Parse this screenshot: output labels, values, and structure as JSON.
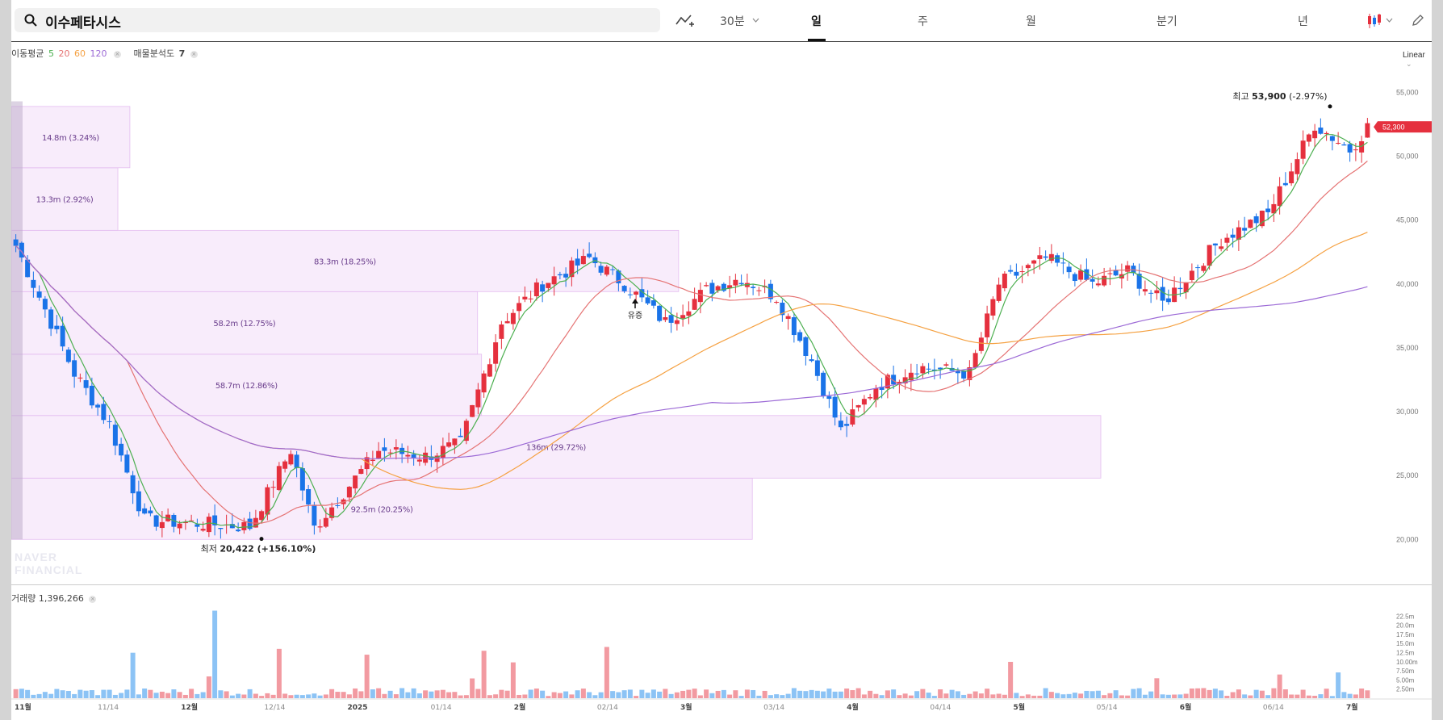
{
  "header": {
    "stock_name": "이수페타시스",
    "intervals": [
      {
        "label": "30분",
        "active": false
      },
      {
        "label": "일",
        "active": true
      },
      {
        "label": "주",
        "active": false
      },
      {
        "label": "월",
        "active": false
      },
      {
        "label": "분기",
        "active": false
      },
      {
        "label": "년",
        "active": false
      }
    ]
  },
  "legend": {
    "ma_label": "이동평균",
    "ma_periods": [
      "5",
      "20",
      "60",
      "120"
    ],
    "ma_colors": [
      "#4caf50",
      "#e57373",
      "#f5a142",
      "#9c6ad6"
    ],
    "volume_profile_label": "매물분석도",
    "volume_profile_value": "7"
  },
  "scale_mode": "Linear",
  "current_price": "52,300",
  "high_label": "최고",
  "high_value": "53,900",
  "high_change": "(-2.97%)",
  "low_label": "최저",
  "low_value": "20,422",
  "low_change": "(+156.10%)",
  "event_label": "유증",
  "volume": {
    "label": "거래량",
    "value": "1,396,266",
    "ticks": [
      "22.5m",
      "20.0m",
      "17.5m",
      "15.0m",
      "12.5m",
      "10.00m",
      "7.50m",
      "5.00m",
      "2.50m"
    ]
  },
  "watermark": [
    "NAVER",
    "FINANCIAL"
  ],
  "colors": {
    "up": "#e5303e",
    "down": "#1a73e8",
    "profile": "#f3dcf8"
  },
  "chart_data": {
    "type": "candlestick",
    "y_ticks": [
      "55,000",
      "50,000",
      "45,000",
      "40,000",
      "35,000",
      "30,000",
      "25,000",
      "20,000"
    ],
    "ylim": [
      18500,
      56800
    ],
    "x_labels": [
      "11월",
      "11/14",
      "12월",
      "12/14",
      "2025",
      "01/14",
      "2월",
      "02/14",
      "3월",
      "03/14",
      "4월",
      "04/14",
      "5월",
      "05/14",
      "6월",
      "06/14",
      "7월"
    ],
    "volume_profile": [
      {
        "label": "92.5m (20.25%)",
        "low": 20000,
        "high": 24800,
        "value": 92.5
      },
      {
        "label": "136m (29.72%)",
        "low": 24800,
        "high": 29700,
        "value": 136
      },
      {
        "label": "58.7m (12.86%)",
        "low": 29700,
        "high": 34500,
        "value": 58.7
      },
      {
        "label": "58.2m (12.75%)",
        "low": 34500,
        "high": 39400,
        "value": 58.2
      },
      {
        "label": "83.3m (18.25%)",
        "low": 39400,
        "high": 44200,
        "value": 83.3
      },
      {
        "label": "13.3m (2.92%)",
        "low": 44200,
        "high": 49100,
        "value": 13.3
      },
      {
        "label": "14.8m (3.24%)",
        "low": 49100,
        "high": 53900,
        "value": 14.8
      }
    ]
  }
}
